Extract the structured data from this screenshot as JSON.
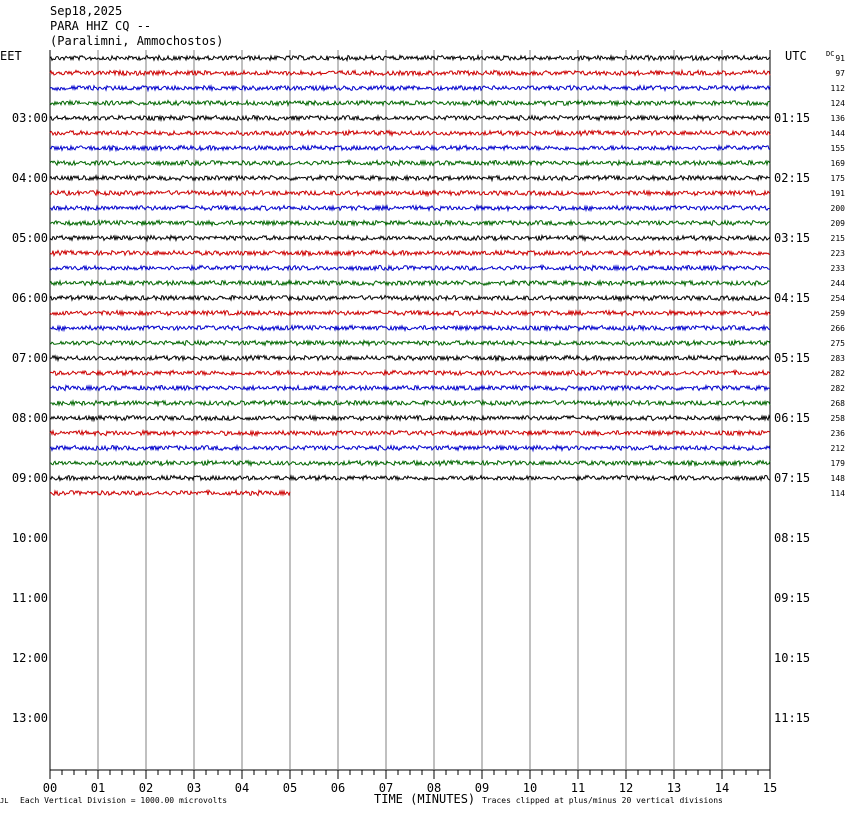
{
  "header": {
    "date": "Sep18,2025",
    "station": "PARA HHZ CQ --",
    "location": "(Paralimni, Ammochostos)"
  },
  "tz_left": "EET",
  "tz_right": "UTC",
  "dc_label": "DC",
  "footer": {
    "mark": "JL",
    "scale": "Each Vertical Division = 1000.00 microvolts",
    "axis_title": "TIME (MINUTES)",
    "clip": "Traces clipped at plus/minus 20 vertical divisions"
  },
  "colors": {
    "trace_cycle": [
      "#000000",
      "#cc0000",
      "#0000cc",
      "#006600"
    ],
    "grid": "#808080"
  },
  "chart_data": {
    "type": "line",
    "xlabel": "TIME (MINUTES)",
    "xlim": [
      0,
      15
    ],
    "x_ticks": [
      "00",
      "01",
      "02",
      "03",
      "04",
      "05",
      "06",
      "07",
      "08",
      "09",
      "10",
      "11",
      "12",
      "13",
      "14",
      "15"
    ],
    "hour_labels": [
      {
        "local": "",
        "utc": ""
      },
      {
        "local": "03:00",
        "utc": "01:15"
      },
      {
        "local": "04:00",
        "utc": "02:15"
      },
      {
        "local": "05:00",
        "utc": "03:15"
      },
      {
        "local": "06:00",
        "utc": "04:15"
      },
      {
        "local": "07:00",
        "utc": "05:15"
      },
      {
        "local": "08:00",
        "utc": "06:15"
      },
      {
        "local": "09:00",
        "utc": "07:15"
      },
      {
        "local": "10:00",
        "utc": "08:15"
      },
      {
        "local": "11:00",
        "utc": "09:15"
      },
      {
        "local": "12:00",
        "utc": "10:15"
      },
      {
        "local": "13:00",
        "utc": "11:15"
      }
    ],
    "traces_per_hour": 4,
    "total_rows": 48,
    "traces": [
      {
        "dc": "91",
        "minutes": 15
      },
      {
        "dc": "97",
        "minutes": 15
      },
      {
        "dc": "112",
        "minutes": 15
      },
      {
        "dc": "124",
        "minutes": 15
      },
      {
        "dc": "136",
        "minutes": 15
      },
      {
        "dc": "144",
        "minutes": 15
      },
      {
        "dc": "155",
        "minutes": 15
      },
      {
        "dc": "169",
        "minutes": 15
      },
      {
        "dc": "175",
        "minutes": 15
      },
      {
        "dc": "191",
        "minutes": 15
      },
      {
        "dc": "200",
        "minutes": 15
      },
      {
        "dc": "209",
        "minutes": 15
      },
      {
        "dc": "215",
        "minutes": 15
      },
      {
        "dc": "223",
        "minutes": 15
      },
      {
        "dc": "233",
        "minutes": 15
      },
      {
        "dc": "244",
        "minutes": 15
      },
      {
        "dc": "254",
        "minutes": 15
      },
      {
        "dc": "259",
        "minutes": 15
      },
      {
        "dc": "266",
        "minutes": 15
      },
      {
        "dc": "275",
        "minutes": 15
      },
      {
        "dc": "283",
        "minutes": 15
      },
      {
        "dc": "282",
        "minutes": 15
      },
      {
        "dc": "282",
        "minutes": 15
      },
      {
        "dc": "268",
        "minutes": 15
      },
      {
        "dc": "258",
        "minutes": 15
      },
      {
        "dc": "236",
        "minutes": 15
      },
      {
        "dc": "212",
        "minutes": 15
      },
      {
        "dc": "179",
        "minutes": 15
      },
      {
        "dc": "148",
        "minutes": 15
      },
      {
        "dc": "114",
        "minutes": 5
      }
    ]
  }
}
